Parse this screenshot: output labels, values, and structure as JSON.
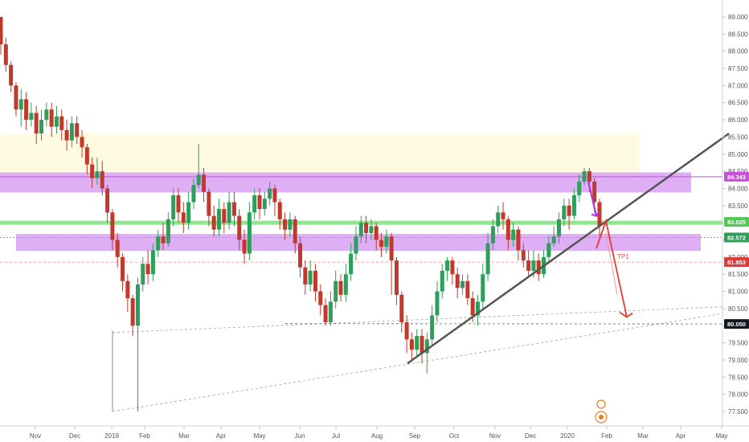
{
  "chart_data": {
    "type": "candlestick",
    "y_axis": {
      "ticks": [
        "89.000",
        "88.500",
        "88.000",
        "87.500",
        "87.000",
        "86.500",
        "86.000",
        "85.500",
        "85.000",
        "84.500",
        "84.000",
        "83.500",
        "83.000",
        "82.500",
        "82.000",
        "81.500",
        "81.000",
        "80.500",
        "80.000",
        "79.500",
        "79.000",
        "78.500",
        "78.000",
        "77.500"
      ],
      "ylim": [
        77.3,
        89.1
      ],
      "position": "right"
    },
    "x_axis": {
      "ticks": [
        "Nov",
        "Dec",
        "2019",
        "Feb",
        "Mar",
        "Apr",
        "May",
        "Jun",
        "Jul",
        "Aug",
        "Sep",
        "Oct",
        "Nov",
        "Dec",
        "2020",
        "Feb",
        "Mar",
        "Apr",
        "May"
      ]
    },
    "series": {
      "candles": [
        [
          89.0,
          88.2,
          89.0,
          87.9
        ],
        [
          88.2,
          87.6,
          88.4,
          87.4
        ],
        [
          87.6,
          87.0,
          87.7,
          86.8
        ],
        [
          87.0,
          86.3,
          87.1,
          86.1
        ],
        [
          86.3,
          86.6,
          86.9,
          85.8
        ],
        [
          86.6,
          86.0,
          86.8,
          85.7
        ],
        [
          86.0,
          86.2,
          86.5,
          85.8
        ],
        [
          86.2,
          85.6,
          86.4,
          85.3
        ],
        [
          85.6,
          86.0,
          86.3,
          85.4
        ],
        [
          86.0,
          86.3,
          86.5,
          85.8
        ],
        [
          86.3,
          85.8,
          86.5,
          85.5
        ],
        [
          85.8,
          86.1,
          86.4,
          85.6
        ],
        [
          86.1,
          85.7,
          86.3,
          85.4
        ],
        [
          85.7,
          85.4,
          86.0,
          85.1
        ],
        [
          85.4,
          85.9,
          86.1,
          85.2
        ],
        [
          85.9,
          85.5,
          86.1,
          85.3
        ],
        [
          85.5,
          85.2,
          85.7,
          84.9
        ],
        [
          85.2,
          84.7,
          85.3,
          84.4
        ],
        [
          84.7,
          84.3,
          84.9,
          84.0
        ],
        [
          84.3,
          84.5,
          84.9,
          84.1
        ],
        [
          84.5,
          84.0,
          84.8,
          83.8
        ],
        [
          84.0,
          83.3,
          84.1,
          83.0
        ],
        [
          83.3,
          82.5,
          83.4,
          82.2
        ],
        [
          82.5,
          82.0,
          82.7,
          81.7
        ],
        [
          82.0,
          81.3,
          82.1,
          81.0
        ],
        [
          81.3,
          80.8,
          81.5,
          80.4
        ],
        [
          80.8,
          80.0,
          80.9,
          79.7
        ],
        [
          80.0,
          81.2,
          81.4,
          77.5
        ],
        [
          81.2,
          81.8,
          82.0,
          81.0
        ],
        [
          81.8,
          81.5,
          82.2,
          81.2
        ],
        [
          81.5,
          82.2,
          82.4,
          81.3
        ],
        [
          82.2,
          82.6,
          82.8,
          82.0
        ],
        [
          82.6,
          82.4,
          83.0,
          82.2
        ],
        [
          82.4,
          83.1,
          83.3,
          82.3
        ],
        [
          83.1,
          83.8,
          84.0,
          82.9
        ],
        [
          83.8,
          83.3,
          84.0,
          83.0
        ],
        [
          83.3,
          83.0,
          83.6,
          82.7
        ],
        [
          83.0,
          83.6,
          83.9,
          82.8
        ],
        [
          83.6,
          84.1,
          84.3,
          83.4
        ],
        [
          84.1,
          84.4,
          85.3,
          84.0
        ],
        [
          84.4,
          83.9,
          84.6,
          83.6
        ],
        [
          83.9,
          83.2,
          84.0,
          82.9
        ],
        [
          83.2,
          82.8,
          83.5,
          82.6
        ],
        [
          82.8,
          83.4,
          83.7,
          82.6
        ],
        [
          83.4,
          83.0,
          83.6,
          82.7
        ],
        [
          83.0,
          83.6,
          83.9,
          82.8
        ],
        [
          83.6,
          83.2,
          83.9,
          82.9
        ],
        [
          83.2,
          82.5,
          83.4,
          82.2
        ],
        [
          82.5,
          82.1,
          82.8,
          81.8
        ],
        [
          82.1,
          83.3,
          83.6,
          81.9
        ],
        [
          83.3,
          83.8,
          84.0,
          83.1
        ],
        [
          83.8,
          83.4,
          84.0,
          83.1
        ],
        [
          83.4,
          83.7,
          83.9,
          83.2
        ],
        [
          83.7,
          84.0,
          84.2,
          83.5
        ],
        [
          84.0,
          83.6,
          84.1,
          83.2
        ],
        [
          83.6,
          83.1,
          83.7,
          82.8
        ],
        [
          83.1,
          82.8,
          83.3,
          82.5
        ],
        [
          82.8,
          83.1,
          83.3,
          82.6
        ],
        [
          83.1,
          82.4,
          83.2,
          82.1
        ],
        [
          82.4,
          81.7,
          82.6,
          81.4
        ],
        [
          81.7,
          81.2,
          81.9,
          80.9
        ],
        [
          81.2,
          81.6,
          81.9,
          81.0
        ],
        [
          81.6,
          81.0,
          81.8,
          80.7
        ],
        [
          81.0,
          80.6,
          81.2,
          80.3
        ],
        [
          80.6,
          80.1,
          80.8,
          80.0
        ],
        [
          80.1,
          80.7,
          81.0,
          80.0
        ],
        [
          80.7,
          81.3,
          81.6,
          80.5
        ],
        [
          81.3,
          80.9,
          81.5,
          80.7
        ],
        [
          80.9,
          81.5,
          81.8,
          80.7
        ],
        [
          81.5,
          82.1,
          82.4,
          81.3
        ],
        [
          82.1,
          82.6,
          82.9,
          81.9
        ],
        [
          82.6,
          83.0,
          83.2,
          82.4
        ],
        [
          83.0,
          82.7,
          83.2,
          82.4
        ],
        [
          82.7,
          82.9,
          83.1,
          82.5
        ],
        [
          82.9,
          82.5,
          83.0,
          82.2
        ],
        [
          82.5,
          82.3,
          82.7,
          82.0
        ],
        [
          82.3,
          82.6,
          82.8,
          82.1
        ],
        [
          82.6,
          81.9,
          82.7,
          80.9
        ],
        [
          81.9,
          80.9,
          82.0,
          80.6
        ],
        [
          80.9,
          80.1,
          81.0,
          79.8
        ],
        [
          80.1,
          79.6,
          80.3,
          79.2
        ],
        [
          79.6,
          79.3,
          79.8,
          79.0
        ],
        [
          79.3,
          79.7,
          79.9,
          79.1
        ],
        [
          79.7,
          79.2,
          79.9,
          78.9
        ],
        [
          79.2,
          79.6,
          79.8,
          78.6
        ],
        [
          79.6,
          80.3,
          80.6,
          79.4
        ],
        [
          80.3,
          81.0,
          81.3,
          80.1
        ],
        [
          81.0,
          81.6,
          81.8,
          80.8
        ],
        [
          81.6,
          81.9,
          82.0,
          81.3
        ],
        [
          81.9,
          81.5,
          82.0,
          81.2
        ],
        [
          81.5,
          81.1,
          81.7,
          80.8
        ],
        [
          81.1,
          81.3,
          81.5,
          80.9
        ],
        [
          81.3,
          80.8,
          81.5,
          80.6
        ],
        [
          80.8,
          80.3,
          81.0,
          80.1
        ],
        [
          80.3,
          80.7,
          80.9,
          80.0
        ],
        [
          80.7,
          81.5,
          81.8,
          80.5
        ],
        [
          81.5,
          82.4,
          82.7,
          81.3
        ],
        [
          82.4,
          82.9,
          83.1,
          82.2
        ],
        [
          82.9,
          83.3,
          83.5,
          82.7
        ],
        [
          83.3,
          83.1,
          83.6,
          82.8
        ],
        [
          83.1,
          82.5,
          83.2,
          82.2
        ],
        [
          82.5,
          82.8,
          83.0,
          82.3
        ],
        [
          82.8,
          82.2,
          82.9,
          81.9
        ],
        [
          82.2,
          81.9,
          82.4,
          81.7
        ],
        [
          81.9,
          81.6,
          82.2,
          81.4
        ],
        [
          81.6,
          81.9,
          82.2,
          81.4
        ],
        [
          81.9,
          81.5,
          82.1,
          81.3
        ],
        [
          81.5,
          82.0,
          82.2,
          81.4
        ],
        [
          82.0,
          82.4,
          82.6,
          81.8
        ],
        [
          82.4,
          82.6,
          82.9,
          82.3
        ],
        [
          82.6,
          83.1,
          83.3,
          82.4
        ],
        [
          83.1,
          83.5,
          83.7,
          82.9
        ],
        [
          83.5,
          83.2,
          83.7,
          82.8
        ],
        [
          83.2,
          83.8,
          84.0,
          83.1
        ],
        [
          83.8,
          84.2,
          84.4,
          83.6
        ],
        [
          84.2,
          84.5,
          84.6,
          84.1
        ],
        [
          84.5,
          84.2,
          84.6,
          83.9
        ],
        [
          84.2,
          83.6,
          84.3,
          83.3
        ],
        [
          83.6,
          82.9,
          83.7,
          82.6
        ]
      ]
    },
    "price_labels": [
      {
        "value": 84.343,
        "text": "84.343",
        "color": "#c94de0",
        "text_color": "#ffffff"
      },
      {
        "value": 83.025,
        "text": "83.025",
        "color": "#4ccd4c",
        "text_color": "#ffffff"
      },
      {
        "value": 82.572,
        "text": "82.572",
        "color": "#2e9e5b",
        "text_color": "#ffffff"
      },
      {
        "value": 81.853,
        "text": "81.853",
        "color": "#e53935",
        "text_color": "#ffffff"
      },
      {
        "value": 80.05,
        "text": "80.050",
        "color": "#131722",
        "text_color": "#ffffff"
      }
    ],
    "annotations": [
      {
        "text": "TP1",
        "color": "#ef5350"
      }
    ],
    "zones": {
      "supply": {
        "lo": 84.3,
        "hi": 85.6,
        "color": "#fffbe0"
      },
      "resistance": {
        "lo": 84.0,
        "hi": 84.35,
        "color": "#dba6f5"
      },
      "support": {
        "lo": 82.25,
        "hi": 82.65,
        "color": "#dba6f5"
      },
      "green_line": 83.0
    },
    "grid": false,
    "colors": {
      "up": "#2e9e5b",
      "down": "#c0392b",
      "trend": "#555555"
    }
  }
}
